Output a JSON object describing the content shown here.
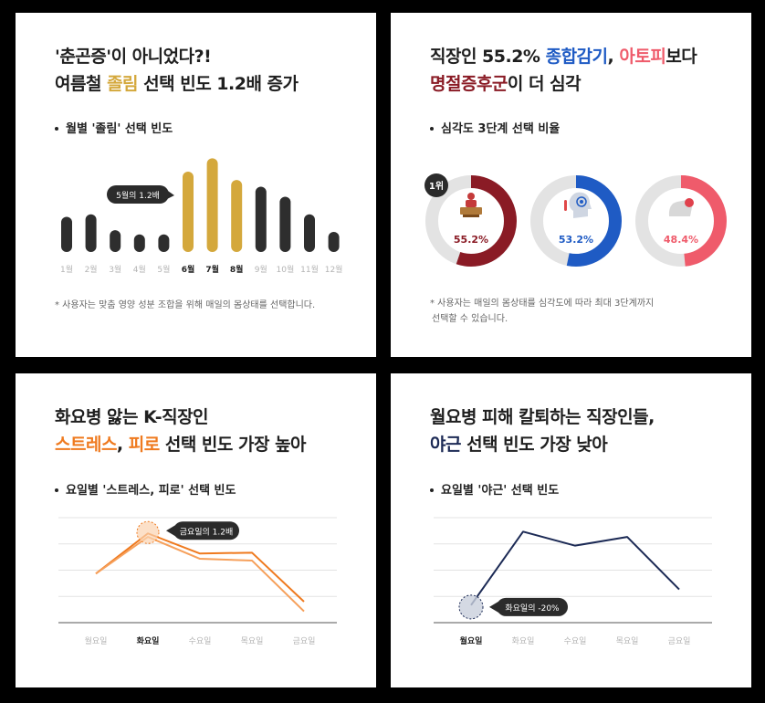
{
  "panel1": {
    "title_l1": "'춘곤증'이 아니었다?!",
    "title_l2_a": "여름철 ",
    "title_l2_b": "졸림",
    "title_l2_c": " 선택 빈도 1.2배 증가",
    "subtitle": "월별 '졸림' 선택 빈도",
    "callout": "5월의 1.2배",
    "note": "* 사용자는 맞춤 영양 성분 조합을 위해 매일의 몸상태를 선택합니다."
  },
  "panel2": {
    "title_l1_a": "직장인 55.2% ",
    "title_l1_b": "종합감기",
    "title_l1_c": ", ",
    "title_l1_d": "아토피",
    "title_l1_e": "보다",
    "title_l2_a": "명절증후군",
    "title_l2_b": "이 더 심각",
    "subtitle": "심각도 3단계 선택 비율",
    "rank_badge": "1위",
    "note_l1": "* 사용자는 매일의 몸상태를 심각도에 따라 최대 3단계까지",
    "note_l2": "선택할 수 있습니다."
  },
  "panel3": {
    "title_l1": "화요병 앓는 K-직장인",
    "title_l2_a": "스트레스",
    "title_l2_b": ", ",
    "title_l2_c": "피로",
    "title_l2_d": " 선택 빈도 가장 높아",
    "subtitle": "요일별 '스트레스, 피로' 선택 빈도",
    "callout": "금요일의 1.2배"
  },
  "panel4": {
    "title_l1": "월요병 피해 칼퇴하는 직장인들,",
    "title_l2_a": "야근",
    "title_l2_b": " 선택 빈도 가장 낮아",
    "subtitle": "요일별 '야근' 선택 빈도",
    "callout": "화요일의 -20%"
  },
  "colors": {
    "dark_bar": "#2e2e2e",
    "gold": "#d4a83c",
    "maroon": "#8a1b25",
    "blue": "#1f5bc4",
    "pink": "#ef5b6b",
    "ring_track": "#e3e3e3",
    "orange": "#ef7a1f",
    "orange_light": "#f6a05b",
    "navy": "#1c2a55"
  },
  "chart_data": [
    {
      "type": "bar",
      "categories": [
        "1월",
        "2월",
        "3월",
        "4월",
        "5월",
        "6월",
        "7월",
        "8월",
        "9월",
        "10월",
        "11월",
        "12월"
      ],
      "highlight": [
        "6월",
        "7월",
        "8월"
      ],
      "values": [
        42,
        45,
        26,
        21,
        21,
        96,
        112,
        86,
        78,
        66,
        45,
        24
      ],
      "ylim": [
        0,
        120
      ]
    },
    {
      "type": "pie",
      "categories": [
        "명절증후군",
        "종합감기",
        "아토피"
      ],
      "values": [
        55.2,
        53.2,
        48.4
      ],
      "labels": [
        "55.2%",
        "53.2%",
        "48.4%"
      ]
    },
    {
      "type": "line",
      "categories": [
        "월요일",
        "화요일",
        "수요일",
        "목요일",
        "금요일"
      ],
      "highlight": "화요일",
      "series": [
        {
          "values": [
            56,
            102,
            79,
            80,
            24
          ]
        },
        {
          "values": [
            56,
            98,
            73,
            71,
            13
          ]
        }
      ],
      "ylim": [
        0,
        120
      ]
    },
    {
      "type": "line",
      "categories": [
        "월요일",
        "화요일",
        "수요일",
        "목요일",
        "금요일"
      ],
      "highlight": "월요일",
      "series": [
        {
          "values": [
            20,
            104,
            88,
            98,
            38
          ]
        }
      ],
      "ylim": [
        0,
        120
      ]
    }
  ]
}
